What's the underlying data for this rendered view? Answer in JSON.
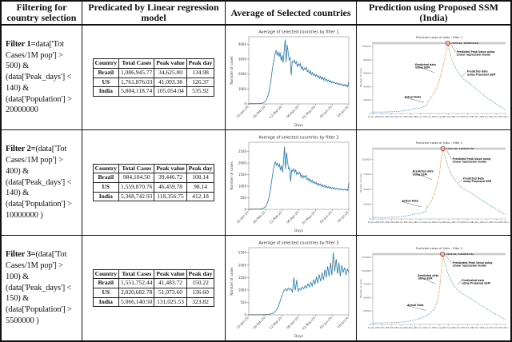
{
  "header": {
    "col1": "Filtering for country selection",
    "col2": "Predicated by Linear regression model",
    "col3": "Average of Selected countries",
    "col4": "Prediction using Proposed SSM (India)"
  },
  "rows": [
    {
      "filter": {
        "prefix": "Filter 1=",
        "body": "data['Tot Cases/1M pop'] > 500) & (data['Peak_days'] < 140) & (data['Population'] > 20000000"
      },
      "table": {
        "headers": [
          "Country",
          "Total Cases",
          "Peak value",
          "Peak day"
        ],
        "rows": [
          [
            "Brazil",
            "1,086,945.77",
            "34,625.00",
            "134.98"
          ],
          [
            "US",
            "1,761,876.03",
            "41,093.38",
            "126.37"
          ],
          [
            "India",
            "5,804,118.74",
            "105,054.04",
            "535.92"
          ]
        ]
      }
    },
    {
      "filter": {
        "prefix": "Filter 2=",
        "body": "(data['Tot Cases/1M pop'] > 400) & (data['Peak_days'] < 140) & (data['Population'] > 10000000 )"
      },
      "table": {
        "headers": [
          "Country",
          "Total Cases",
          "Peak value",
          "Peak day"
        ],
        "rows": [
          [
            "Brazil",
            "984,104.50",
            "39,446.72",
            "108.14"
          ],
          [
            "US",
            "1,559,870.76",
            "46,459.78",
            "98.14"
          ],
          [
            "India",
            "5,368,742.93",
            "118,356.75",
            "412.18"
          ]
        ]
      }
    },
    {
      "filter": {
        "prefix": "Filter 3=",
        "body": "(data['Tot Cases/1M pop'] > 100) & (data['Peak_days'] < 150) & (data['Population'] > 5500000 )"
      },
      "table": {
        "headers": [
          "Country",
          "Total Cases",
          "Peak value",
          "Peak day"
        ],
        "rows": [
          [
            "Brazil",
            "1,551,752.44",
            "41,483.72",
            "150.22"
          ],
          [
            "US",
            "2,020,682.78",
            "51,073.60",
            "136.60"
          ],
          [
            "India",
            "5,066,140.50",
            "131,025.53",
            "323.82"
          ]
        ]
      }
    }
  ],
  "chart_data": [
    {
      "id": "avg1",
      "type": "line",
      "title": "Average of selected countries by filter 1",
      "xlabel": "Days",
      "ylabel": "Number of cases",
      "ylim": [
        0,
        4500
      ],
      "yticks": [
        0,
        1000,
        2000,
        3000,
        4000
      ],
      "x": [
        "22-Jan-20",
        "16-Feb-20",
        "12-Mar-20",
        "06-Apr-20",
        "01-May-20",
        "05-Jun-20",
        "16-Jul-20"
      ],
      "color": "#1f77b4",
      "values": [
        15,
        15,
        16,
        16,
        17,
        18,
        18,
        19,
        20,
        22,
        25,
        30,
        38,
        50,
        70,
        100,
        150,
        230,
        360,
        550,
        820,
        1200,
        1650,
        2150,
        2600,
        3000,
        3350,
        3600,
        3250,
        3500,
        3150,
        3450,
        2900,
        3250,
        2750,
        3550,
        4300,
        2800,
        3950,
        3450,
        2950,
        3100,
        1900,
        2850,
        2800,
        2950,
        2700,
        2850,
        2500,
        2700,
        2550,
        2700,
        2350,
        2500,
        2250,
        2400,
        2300,
        2450,
        2150,
        2250,
        2050,
        2200,
        1950,
        2100,
        1900,
        2000,
        1850,
        1950,
        1800,
        1900,
        1700,
        1850,
        1650,
        1800,
        1600,
        1750,
        1550,
        1650,
        1500,
        1600,
        1450,
        1550,
        1400,
        1500,
        1380,
        1450,
        1350,
        1420,
        1300,
        1380,
        1280,
        1350,
        1250,
        1320,
        1200,
        1300,
        1180,
        1280,
        1150,
        1480
      ]
    },
    {
      "id": "avg2",
      "type": "line",
      "title": "Average of selected countries by filter 2",
      "xlabel": "Days",
      "ylabel": "Number of cases",
      "ylim": [
        0,
        2900
      ],
      "yticks": [
        0,
        500,
        1000,
        1500,
        2000,
        2500
      ],
      "x": [
        "22-Jan-20",
        "16-Feb-20",
        "12-Mar-20",
        "06-Apr-20",
        "01-May-20",
        "05-Jun-20",
        "16-Jul-20"
      ],
      "color": "#1f77b4",
      "values": [
        8,
        8,
        9,
        9,
        10,
        10,
        11,
        12,
        13,
        14,
        16,
        20,
        26,
        35,
        48,
        70,
        105,
        160,
        250,
        380,
        560,
        800,
        1100,
        1400,
        1700,
        1950,
        2050,
        1900,
        2000,
        1850,
        1950,
        1700,
        1900,
        1600,
        2050,
        2700,
        1750,
        2450,
        2050,
        1750,
        1800,
        1200,
        1700,
        1650,
        1750,
        1600,
        1700,
        1500,
        1600,
        1520,
        1600,
        1400,
        1500,
        1350,
        1450,
        1380,
        1470,
        1280,
        1350,
        1230,
        1320,
        1170,
        1260,
        1140,
        1200,
        1100,
        1170,
        1060,
        1130,
        1030,
        1100,
        1000,
        1070,
        970,
        1040,
        950,
        1010,
        930,
        990,
        910,
        970,
        890,
        950,
        880,
        930,
        870,
        920,
        860,
        900,
        850,
        890,
        840,
        880,
        830,
        870,
        820,
        860,
        810,
        1150
      ]
    },
    {
      "id": "avg3",
      "type": "line",
      "title": "Average of selected countries by filter 3",
      "xlabel": "Days",
      "ylabel": "Number of cases",
      "ylim": [
        0,
        2700
      ],
      "yticks": [
        0,
        500,
        1000,
        1500,
        2000,
        2500
      ],
      "x": [
        "22-Jan-20",
        "16-Feb-20",
        "12-Mar-20",
        "06-Apr-20",
        "01-May-20",
        "05-Jun-20",
        "16-Jul-20"
      ],
      "color": "#1f77b4",
      "values": [
        5,
        5,
        5,
        6,
        6,
        6,
        7,
        7,
        8,
        8,
        9,
        10,
        12,
        15,
        20,
        28,
        40,
        60,
        95,
        150,
        230,
        350,
        500,
        680,
        850,
        980,
        1050,
        960,
        1080,
        1000,
        1060,
        900,
        1500,
        980,
        1400,
        950,
        1060,
        1000,
        1120,
        1040,
        1180,
        1080,
        1250,
        1120,
        1320,
        1150,
        1420,
        1220,
        1520,
        1280,
        1620,
        1350,
        1700,
        1400,
        1820,
        1500,
        1950,
        1550,
        2100,
        1600,
        2500,
        1750,
        2250,
        1650,
        2100,
        1550,
        2000,
        1700,
        1900,
        1600,
        1850,
        1700
      ]
    },
    {
      "id": "ssm1",
      "type": "ssm",
      "title": "Predicted cases of India : Filter 1",
      "ylabel": "Number of cases",
      "peak_value": 105054.04,
      "peak_label": "(535.92, 105054.04)",
      "yticks": [
        0,
        20000,
        40000,
        60000,
        80000,
        100000
      ],
      "xticks": [
        "22-Jan-20",
        "22-Feb-20",
        "22-Mar-20",
        "22-Apr-20",
        "22-May-20",
        "22-Jun-20",
        "22-Jul-20",
        "22-Aug-20",
        "22-Sep-20",
        "22-Oct-20",
        "22-Nov-20",
        "22-Dec-20",
        "22-Jan-21",
        "22-Feb-21",
        "22-Mar-21"
      ],
      "colors": {
        "actual": "#74a9d8",
        "ssm": "#f59d56",
        "proposed": "#7dc383",
        "peak": "#e0342b",
        "hline": "#c9c9c9"
      },
      "series": {
        "actual": [
          [
            0,
            0.02
          ],
          [
            0.04,
            0.021
          ],
          [
            0.08,
            0.022
          ],
          [
            0.12,
            0.024
          ],
          [
            0.16,
            0.027
          ],
          [
            0.2,
            0.032
          ],
          [
            0.24,
            0.04
          ],
          [
            0.27,
            0.05
          ],
          [
            0.3,
            0.062
          ],
          [
            0.33,
            0.08
          ],
          [
            0.355,
            0.07
          ],
          [
            0.375,
            0.1
          ],
          [
            0.39,
            0.09
          ],
          [
            0.405,
            0.13
          ],
          [
            0.42,
            0.18
          ]
        ],
        "ssm": [
          [
            0.42,
            0.18
          ],
          [
            0.45,
            0.26
          ],
          [
            0.48,
            0.36
          ],
          [
            0.5,
            0.47
          ],
          [
            0.52,
            0.6
          ],
          [
            0.54,
            0.76
          ],
          [
            0.555,
            0.92
          ],
          [
            0.565,
            1.0
          ]
        ],
        "proposed": [
          [
            0.565,
            1.0
          ],
          [
            0.58,
            0.86
          ],
          [
            0.6,
            0.74
          ],
          [
            0.63,
            0.62
          ],
          [
            0.66,
            0.54
          ],
          [
            0.69,
            0.48
          ],
          [
            0.71,
            0.455
          ],
          [
            0.72,
            0.44
          ],
          [
            0.74,
            0.41
          ],
          [
            0.77,
            0.36
          ],
          [
            0.81,
            0.3
          ],
          [
            0.85,
            0.24
          ],
          [
            0.9,
            0.17
          ],
          [
            0.95,
            0.11
          ],
          [
            1.0,
            0.05
          ]
        ]
      },
      "peak": [
        0.565,
        1.0
      ],
      "annotations": [
        {
          "text": "Actual Data",
          "tx": 0.24,
          "ty": 0.76,
          "ax": 0.385,
          "ay": 0.84
        },
        {
          "text": "Predicted data\nusing SSM",
          "tx": 0.32,
          "ty": 0.3,
          "ax": 0.465,
          "ay": 0.42
        },
        {
          "text": "Predicted Peak Value using\nLinear regression model",
          "tx": 0.63,
          "ty": 0.12,
          "ax": 0.59,
          "ay": 0.02
        },
        {
          "text": "Predicted data\nusing Proposed SSM",
          "tx": 0.71,
          "ty": 0.4,
          "ax": 0.675,
          "ay": 0.47
        }
      ]
    },
    {
      "id": "ssm2",
      "type": "ssm",
      "title": "Predicted cases of India : Filter 2",
      "ylabel": "Number of cases",
      "peak_value": 118356.75,
      "peak_label": "(412.18, 118356.75)",
      "yticks": [
        0,
        25000,
        50000,
        75000,
        100000
      ],
      "xticks": [
        "22-Jan-20",
        "22-Feb-20",
        "22-Mar-20",
        "22-Apr-20",
        "22-May-20",
        "22-Jun-20",
        "22-Jul-20",
        "22-Aug-20",
        "22-Sep-20",
        "22-Oct-20",
        "22-Nov-20",
        "22-Dec-20",
        "22-Jan-21",
        "22-Feb-21",
        "22-Mar-21"
      ],
      "colors": {
        "actual": "#74a9d8",
        "ssm": "#f59d56",
        "proposed": "#7dc383",
        "peak": "#e0342b",
        "hline": "#c9c9c9"
      },
      "series": {
        "actual": [
          [
            0,
            0.02
          ],
          [
            0.04,
            0.021
          ],
          [
            0.08,
            0.022
          ],
          [
            0.12,
            0.024
          ],
          [
            0.16,
            0.027
          ],
          [
            0.2,
            0.032
          ],
          [
            0.24,
            0.04
          ],
          [
            0.27,
            0.05
          ],
          [
            0.3,
            0.062
          ],
          [
            0.33,
            0.08
          ],
          [
            0.355,
            0.07
          ],
          [
            0.375,
            0.1
          ],
          [
            0.39,
            0.09
          ],
          [
            0.4,
            0.13
          ],
          [
            0.41,
            0.17
          ]
        ],
        "ssm": [
          [
            0.41,
            0.17
          ],
          [
            0.44,
            0.25
          ],
          [
            0.46,
            0.35
          ],
          [
            0.48,
            0.47
          ],
          [
            0.5,
            0.62
          ],
          [
            0.51,
            0.78
          ],
          [
            0.52,
            0.93
          ],
          [
            0.528,
            1.0
          ]
        ],
        "proposed": [
          [
            0.528,
            1.0
          ],
          [
            0.55,
            0.84
          ],
          [
            0.57,
            0.72
          ],
          [
            0.6,
            0.6
          ],
          [
            0.63,
            0.52
          ],
          [
            0.66,
            0.46
          ],
          [
            0.68,
            0.43
          ],
          [
            0.7,
            0.41
          ],
          [
            0.73,
            0.38
          ],
          [
            0.77,
            0.33
          ],
          [
            0.81,
            0.28
          ],
          [
            0.86,
            0.22
          ],
          [
            0.91,
            0.16
          ],
          [
            0.96,
            0.1
          ],
          [
            1.0,
            0.06
          ]
        ]
      },
      "peak": [
        0.528,
        1.0
      ],
      "annotations": [
        {
          "text": "Actual Data",
          "tx": 0.22,
          "ty": 0.74,
          "ax": 0.365,
          "ay": 0.83
        },
        {
          "text": "Predicted data\nusing SSM",
          "tx": 0.3,
          "ty": 0.32,
          "ax": 0.445,
          "ay": 0.44
        },
        {
          "text": "Predicted Peak Value using\nLinear regression model",
          "tx": 0.6,
          "ty": 0.14,
          "ax": 0.555,
          "ay": 0.02
        },
        {
          "text": "Predicted Data\nusing Proposed SSM",
          "tx": 0.68,
          "ty": 0.42,
          "ax": 0.645,
          "ay": 0.49
        }
      ]
    },
    {
      "id": "ssm3",
      "type": "ssm",
      "title": "Predicted cases of India : Filter 3",
      "ylabel": "Number of cases",
      "peak_value": 131025.53,
      "peak_label": "(323.82, 131025.53)",
      "yticks": [
        0,
        25000,
        50000,
        75000,
        100000,
        125000
      ],
      "xticks": [
        "22-Jan-20",
        "22-Feb-20",
        "22-Mar-20",
        "22-Apr-20",
        "22-May-20",
        "22-Jun-20",
        "22-Jul-20",
        "22-Aug-20",
        "22-Sep-20",
        "22-Oct-20",
        "22-Nov-20",
        "22-Dec-20",
        "22-Jan-21",
        "22-Feb-21",
        "22-Mar-21"
      ],
      "colors": {
        "actual": "#74a9d8",
        "ssm": "#f59d56",
        "proposed": "#7dc383",
        "peak": "#e0342b",
        "hline": "#c9c9c9"
      },
      "series": {
        "actual": [
          [
            0,
            0.02
          ],
          [
            0.05,
            0.021
          ],
          [
            0.1,
            0.023
          ],
          [
            0.15,
            0.026
          ],
          [
            0.2,
            0.031
          ],
          [
            0.25,
            0.04
          ],
          [
            0.29,
            0.052
          ],
          [
            0.33,
            0.07
          ],
          [
            0.37,
            0.095
          ],
          [
            0.4,
            0.12
          ],
          [
            0.43,
            0.16
          ],
          [
            0.46,
            0.21
          ]
        ],
        "ssm": [
          [
            0.46,
            0.21
          ],
          [
            0.48,
            0.3
          ],
          [
            0.495,
            0.42
          ],
          [
            0.505,
            0.55
          ],
          [
            0.515,
            0.72
          ],
          [
            0.52,
            0.86
          ],
          [
            0.525,
            1.0
          ]
        ],
        "proposed": [
          [
            0.525,
            1.0
          ],
          [
            0.545,
            0.85
          ],
          [
            0.565,
            0.73
          ],
          [
            0.59,
            0.62
          ],
          [
            0.62,
            0.53
          ],
          [
            0.65,
            0.47
          ],
          [
            0.67,
            0.44
          ],
          [
            0.69,
            0.42
          ],
          [
            0.72,
            0.39
          ],
          [
            0.76,
            0.34
          ],
          [
            0.8,
            0.29
          ],
          [
            0.85,
            0.23
          ],
          [
            0.9,
            0.17
          ],
          [
            0.95,
            0.12
          ],
          [
            1.0,
            0.07
          ]
        ]
      },
      "peak": [
        0.525,
        1.0
      ],
      "annotations": [
        {
          "text": "Actual Data",
          "tx": 0.26,
          "ty": 0.72,
          "ax": 0.4,
          "ay": 0.8
        },
        {
          "text": "Predicted data\nusing SSM",
          "tx": 0.34,
          "ty": 0.3,
          "ax": 0.47,
          "ay": 0.42
        },
        {
          "text": "Predicated Peak Value using\nLinear regression model",
          "tx": 0.6,
          "ty": 0.12,
          "ax": 0.55,
          "ay": 0.02
        },
        {
          "text": "Predicated data\nusing Proposed SSM",
          "tx": 0.67,
          "ty": 0.37,
          "ax": 0.64,
          "ay": 0.44
        }
      ]
    }
  ]
}
